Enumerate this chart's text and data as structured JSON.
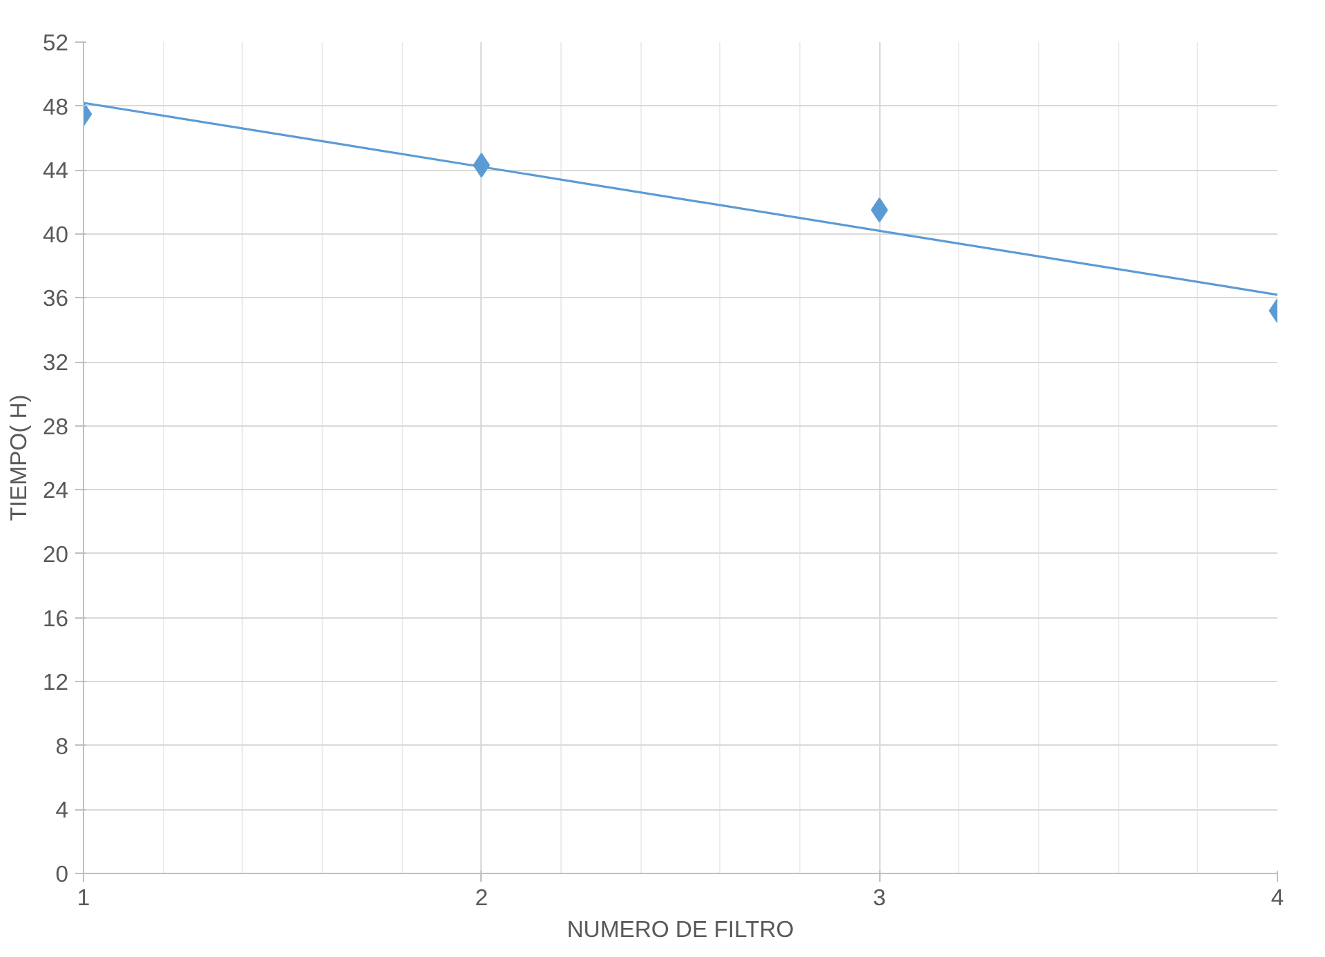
{
  "chart_data": {
    "type": "scatter",
    "xlabel": "NUMERO DE FILTRO",
    "ylabel": "TIEMPO( H)",
    "x": [
      1,
      2,
      3,
      4
    ],
    "series": [
      {
        "color": "#5b9bd5",
        "marker": "diamond",
        "values": [
          47.5,
          44.3,
          41.5,
          35.2
        ]
      },
      {
        "type": "line",
        "color": "#5b9bd5",
        "marker": "none",
        "line_style": "solid",
        "x": [
          1,
          4
        ],
        "values": [
          48.2,
          36.2
        ]
      }
    ],
    "xlim": [
      1,
      4
    ],
    "xticks": [
      1,
      2,
      3,
      4
    ],
    "ylim": [
      0,
      52
    ],
    "yticks": [
      0,
      4,
      8,
      12,
      16,
      20,
      24,
      28,
      32,
      36,
      40,
      44,
      48,
      52
    ],
    "grid": true
  }
}
